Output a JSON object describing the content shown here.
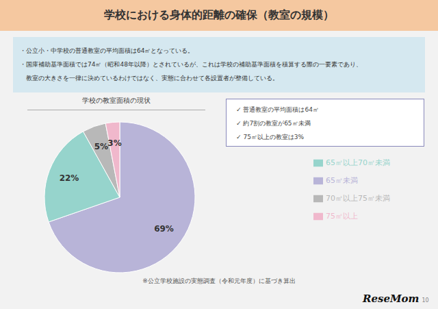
{
  "chart_data": {
    "type": "pie",
    "title": "学校における身体的距離の確保（教室の規模）",
    "subtitle": "学校の教室面積の現状",
    "categories": [
      "65㎡未満",
      "65㎡以上70㎡未満",
      "70㎡以上75㎡未満",
      "75㎡以上"
    ],
    "values": [
      69,
      22,
      5,
      3
    ],
    "value_labels": [
      "69%",
      "22%",
      "5%",
      "3%"
    ],
    "colors": [
      "#b8b4d8",
      "#96d4cc",
      "#b8b8b8",
      "#f0b8cc"
    ],
    "data_labels": true,
    "legend": "right",
    "annotations": [
      "・公立小・中学校の普通教室の平均面積は64㎡となっている。",
      "・国庫補助基準面積では74㎡（昭和48年以降）とされているが、これは学校の補助基準面積を積算する際の一要素であり、",
      "教室の大きさを一律に決めているわけではなく、実態に合わせて各設置者が整備している。",
      "✓ 普通教室の平均面積は64㎡",
      "✓ 約7割の教室が65㎡未満",
      "✓ 75㎡以上の教室は3%",
      "※公立学校施設の実態調査（令和元年度）に基づき算出",
      "ReseMom",
      "10"
    ]
  }
}
